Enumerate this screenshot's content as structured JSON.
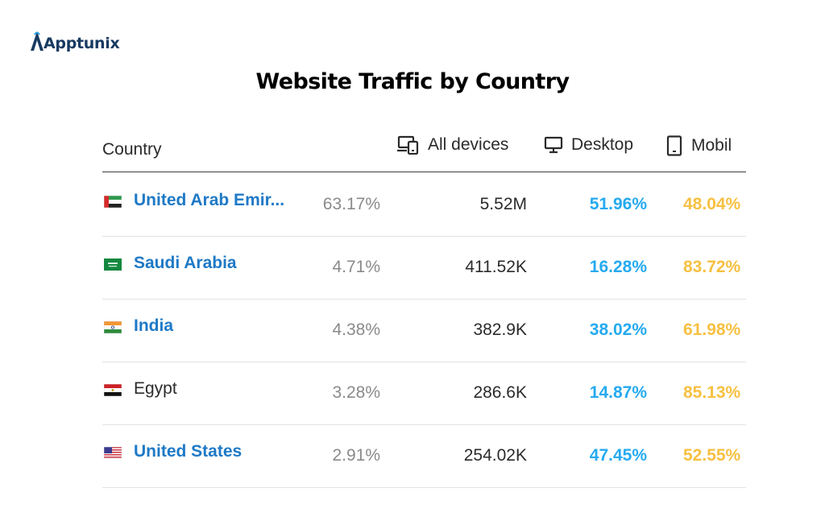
{
  "brand": {
    "name": "Apptunix",
    "color": "#183a61"
  },
  "chart_data": {
    "type": "table",
    "title": "Website Traffic by Country",
    "columns": [
      "Country",
      "All devices",
      "Desktop",
      "Mobil"
    ],
    "column_icons": [
      "",
      "devices-icon",
      "desktop-icon",
      "mobile-icon"
    ],
    "rows": [
      {
        "country": "United Arab Emir...",
        "share": "63.17%",
        "all_devices": "5.52M",
        "desktop": "51.96%",
        "mobile": "48.04%",
        "linked": true
      },
      {
        "country": "Saudi Arabia",
        "share": "4.71%",
        "all_devices": "411.52K",
        "desktop": "16.28%",
        "mobile": "83.72%",
        "linked": true
      },
      {
        "country": "India",
        "share": "4.38%",
        "all_devices": "382.9K",
        "desktop": "38.02%",
        "mobile": "61.98%",
        "linked": true
      },
      {
        "country": "Egypt",
        "share": "3.28%",
        "all_devices": "286.6K",
        "desktop": "14.87%",
        "mobile": "85.13%",
        "linked": false
      },
      {
        "country": "United States",
        "share": "2.91%",
        "all_devices": "254.02K",
        "desktop": "47.45%",
        "mobile": "52.55%",
        "linked": true
      }
    ],
    "colors": {
      "country_link": "#1e79c6",
      "desktop": "#25aaf0",
      "mobile": "#f7c041",
      "share": "#8a8a8a"
    }
  }
}
